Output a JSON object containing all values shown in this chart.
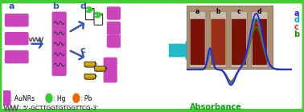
{
  "background_color": "#ffffff",
  "border_color": "#44cc33",
  "fig_width": 3.78,
  "fig_height": 1.4,
  "rod_color": "#cc44bb",
  "hg_color": "#33cc33",
  "pb_color": "#ee6600",
  "arrow_color": "#3355bb",
  "cyan_arrow": "#22bbcc",
  "curves": {
    "a": {
      "color": "#2222ee",
      "lw": 1.3,
      "zorder": 4
    },
    "d": {
      "color": "#00aaaa",
      "lw": 1.3,
      "zorder": 3
    },
    "c": {
      "color": "#ee2222",
      "lw": 1.3,
      "zorder": 2
    },
    "b": {
      "color": "#228800",
      "lw": 1.3,
      "zorder": 1
    }
  },
  "curve_label_colors": {
    "a": "#2222ee",
    "d": "#00aaaa",
    "c": "#ee2222",
    "b": "#228800"
  },
  "scales": {
    "a": 1.0,
    "d": 0.91,
    "c": 0.84,
    "b": 0.76
  },
  "vial_bg": "#b09070",
  "vial_liquid_colors": [
    "#6b1208",
    "#8b2010",
    "#7b1a0c",
    "#7b1a0c"
  ],
  "vial_labels": [
    "a",
    "b",
    "c",
    "d"
  ],
  "absorbance_color": "#00aa00",
  "label_color": "#3355bb"
}
